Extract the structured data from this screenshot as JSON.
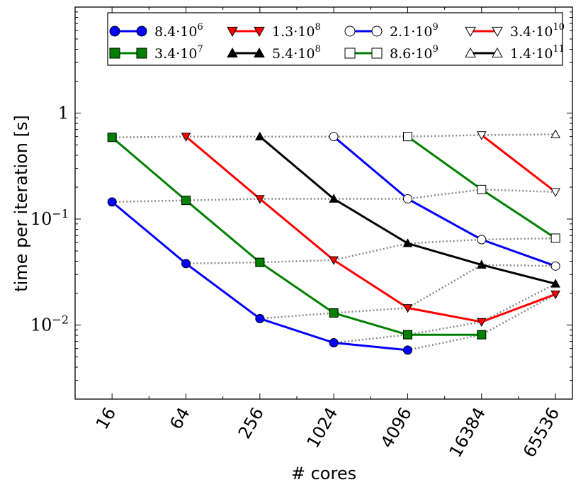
{
  "chart_data": {
    "type": "line",
    "title": "",
    "xlabel": "# cores",
    "ylabel": "time per iteration [s]",
    "xscale": "log2",
    "yscale": "log10",
    "xlim": [
      8,
      90000
    ],
    "ylim": [
      0.002,
      10
    ],
    "x": [
      16,
      64,
      256,
      1024,
      4096,
      16384,
      65536
    ],
    "x_tick_labels": [
      "16",
      "64",
      "256",
      "1024",
      "4096",
      "16384",
      "65536"
    ],
    "y_ticks": [
      {
        "value": 0.01,
        "base": "10",
        "exp": "−2"
      },
      {
        "value": 0.1,
        "base": "10",
        "exp": "−1"
      },
      {
        "value": 1,
        "label": "1"
      }
    ],
    "legend_position": "top",
    "series": [
      {
        "name": "8.4·10^6",
        "base": "8.4·10",
        "exp": "6",
        "color": "#0000ff",
        "marker": "circle",
        "filled": true,
        "points": [
          [
            16,
            0.145
          ],
          [
            64,
            0.038
          ],
          [
            256,
            0.0115
          ],
          [
            1024,
            0.0068
          ],
          [
            4096,
            0.0058
          ]
        ]
      },
      {
        "name": "3.4·10^7",
        "base": "3.4·10",
        "exp": "7",
        "color": "#008000",
        "marker": "square",
        "filled": true,
        "points": [
          [
            16,
            0.59
          ],
          [
            64,
            0.15
          ],
          [
            256,
            0.039
          ],
          [
            1024,
            0.013
          ],
          [
            4096,
            0.0081
          ],
          [
            16384,
            0.0081
          ]
        ]
      },
      {
        "name": "1.3·10^8",
        "base": "1.3·10",
        "exp": "8",
        "color": "#ff0000",
        "marker": "triangle-down",
        "filled": true,
        "points": [
          [
            64,
            0.6
          ],
          [
            256,
            0.155
          ],
          [
            1024,
            0.041
          ],
          [
            4096,
            0.0145
          ],
          [
            16384,
            0.0107
          ],
          [
            65536,
            0.0195
          ]
        ]
      },
      {
        "name": "5.4·10^8",
        "base": "5.4·10",
        "exp": "8",
        "color": "#000000",
        "marker": "triangle-up",
        "filled": true,
        "points": [
          [
            256,
            0.6
          ],
          [
            1024,
            0.155
          ],
          [
            4096,
            0.059
          ],
          [
            16384,
            0.037
          ],
          [
            65536,
            0.0245
          ]
        ]
      },
      {
        "name": "2.1·10^9",
        "base": "2.1·10",
        "exp": "9",
        "color": "#0000ff",
        "marker": "circle",
        "filled": false,
        "points": [
          [
            1024,
            0.6
          ],
          [
            4096,
            0.155
          ],
          [
            16384,
            0.064
          ],
          [
            65536,
            0.036
          ]
        ]
      },
      {
        "name": "8.6·10^9",
        "base": "8.6·10",
        "exp": "9",
        "color": "#008000",
        "marker": "square",
        "filled": false,
        "points": [
          [
            4096,
            0.6
          ],
          [
            16384,
            0.19
          ],
          [
            65536,
            0.066
          ]
        ]
      },
      {
        "name": "3.4·10^10",
        "base": "3.4·10",
        "exp": "10",
        "color": "#ff0000",
        "marker": "triangle-down",
        "filled": false,
        "points": [
          [
            16384,
            0.62
          ],
          [
            65536,
            0.18
          ]
        ]
      },
      {
        "name": "1.4·10^11",
        "base": "1.4·10",
        "exp": "11",
        "color": "#000000",
        "marker": "triangle-up",
        "filled": false,
        "points": [
          [
            65536,
            0.63
          ]
        ]
      }
    ],
    "weak_scaling_lines": {
      "style": "dotted",
      "color": "#888888",
      "lines": [
        [
          [
            16,
            0.59
          ],
          [
            64,
            0.6
          ],
          [
            256,
            0.6
          ],
          [
            1024,
            0.6
          ],
          [
            4096,
            0.6
          ],
          [
            16384,
            0.62
          ],
          [
            65536,
            0.63
          ]
        ],
        [
          [
            16,
            0.145
          ],
          [
            64,
            0.15
          ],
          [
            256,
            0.155
          ],
          [
            1024,
            0.155
          ],
          [
            4096,
            0.155
          ],
          [
            16384,
            0.19
          ],
          [
            65536,
            0.18
          ]
        ],
        [
          [
            64,
            0.038
          ],
          [
            256,
            0.039
          ],
          [
            1024,
            0.041
          ],
          [
            4096,
            0.059
          ],
          [
            16384,
            0.064
          ],
          [
            65536,
            0.066
          ]
        ],
        [
          [
            256,
            0.0115
          ],
          [
            1024,
            0.013
          ],
          [
            4096,
            0.0145
          ],
          [
            16384,
            0.037
          ],
          [
            65536,
            0.036
          ]
        ],
        [
          [
            1024,
            0.0068
          ],
          [
            4096,
            0.0081
          ],
          [
            16384,
            0.0107
          ],
          [
            65536,
            0.0245
          ]
        ],
        [
          [
            4096,
            0.0058
          ],
          [
            16384,
            0.0081
          ],
          [
            65536,
            0.0195
          ]
        ]
      ]
    }
  }
}
